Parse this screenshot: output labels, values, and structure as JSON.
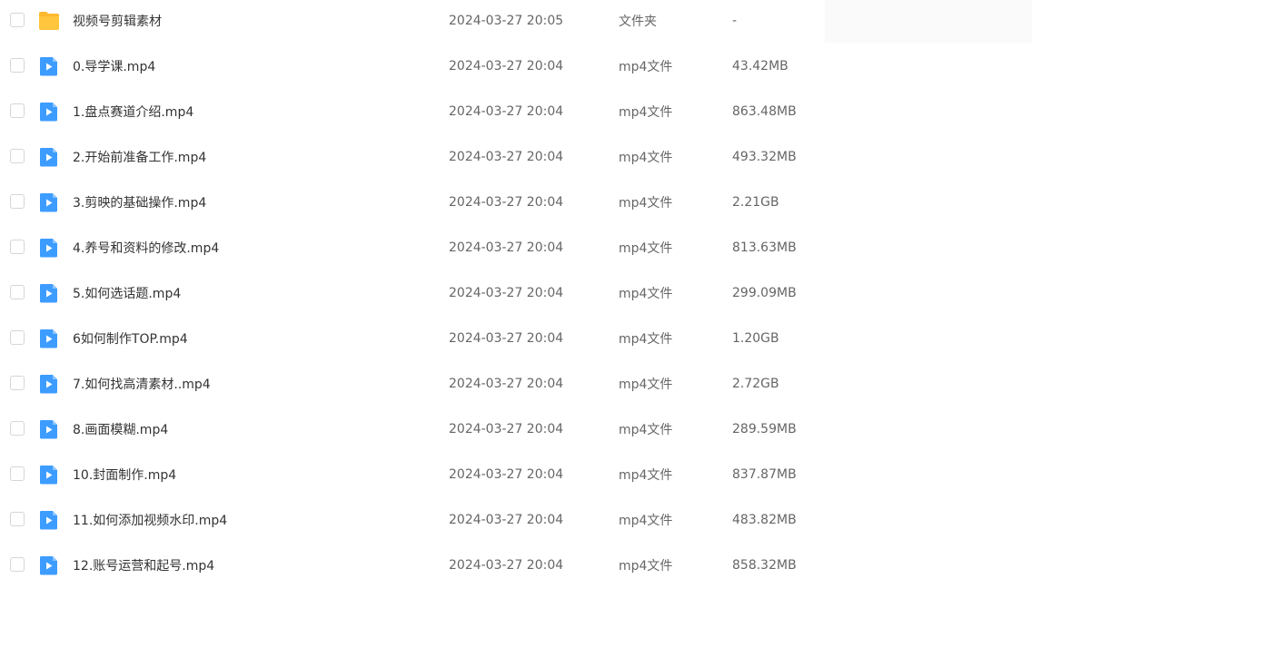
{
  "colors": {
    "folder": "#ffc53d",
    "video": "#3d9cff"
  },
  "files": [
    {
      "name": "视频号剪辑素材",
      "time": "2024-03-27 20:05",
      "type": "文件夹",
      "size": "-",
      "icon": "folder-icon"
    },
    {
      "name": "0.导学课.mp4",
      "time": "2024-03-27 20:04",
      "type": "mp4文件",
      "size": "43.42MB",
      "icon": "video-file-icon"
    },
    {
      "name": "1.盘点赛道介绍.mp4",
      "time": "2024-03-27 20:04",
      "type": "mp4文件",
      "size": "863.48MB",
      "icon": "video-file-icon"
    },
    {
      "name": "2.开始前准备工作.mp4",
      "time": "2024-03-27 20:04",
      "type": "mp4文件",
      "size": "493.32MB",
      "icon": "video-file-icon"
    },
    {
      "name": "3.剪映的基础操作.mp4",
      "time": "2024-03-27 20:04",
      "type": "mp4文件",
      "size": "2.21GB",
      "icon": "video-file-icon"
    },
    {
      "name": "4.养号和资料的修改.mp4",
      "time": "2024-03-27 20:04",
      "type": "mp4文件",
      "size": "813.63MB",
      "icon": "video-file-icon"
    },
    {
      "name": "5.如何选话题.mp4",
      "time": "2024-03-27 20:04",
      "type": "mp4文件",
      "size": "299.09MB",
      "icon": "video-file-icon"
    },
    {
      "name": "6如何制作TOP.mp4",
      "time": "2024-03-27 20:04",
      "type": "mp4文件",
      "size": "1.20GB",
      "icon": "video-file-icon"
    },
    {
      "name": "7.如何找高清素材..mp4",
      "time": "2024-03-27 20:04",
      "type": "mp4文件",
      "size": "2.72GB",
      "icon": "video-file-icon"
    },
    {
      "name": "8.画面模糊.mp4",
      "time": "2024-03-27 20:04",
      "type": "mp4文件",
      "size": "289.59MB",
      "icon": "video-file-icon"
    },
    {
      "name": "10.封面制作.mp4",
      "time": "2024-03-27 20:04",
      "type": "mp4文件",
      "size": "837.87MB",
      "icon": "video-file-icon"
    },
    {
      "name": "11.如何添加视频水印.mp4",
      "time": "2024-03-27 20:04",
      "type": "mp4文件",
      "size": "483.82MB",
      "icon": "video-file-icon"
    },
    {
      "name": "12.账号运营和起号.mp4",
      "time": "2024-03-27 20:04",
      "type": "mp4文件",
      "size": "858.32MB",
      "icon": "video-file-icon"
    }
  ]
}
